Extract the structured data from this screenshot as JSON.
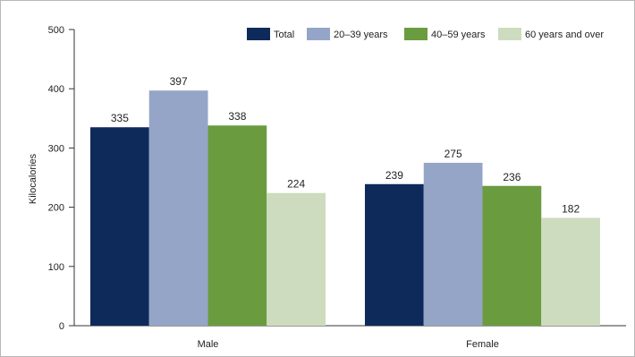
{
  "chart_data": {
    "type": "bar",
    "title": "",
    "xlabel": "",
    "ylabel": "Kilocalories",
    "ylim": [
      0,
      500
    ],
    "yticks": [
      0,
      100,
      200,
      300,
      400,
      500
    ],
    "grid": false,
    "legend_position": "top-right",
    "categories": [
      "Male",
      "Female"
    ],
    "series": [
      {
        "name": "Total",
        "color": "#0d2a5a",
        "values": [
          335,
          239
        ]
      },
      {
        "name": "20–39 years",
        "color": "#95a5c8",
        "values": [
          397,
          275
        ]
      },
      {
        "name": "40–59 years",
        "color": "#6a9c3f",
        "values": [
          338,
          236
        ]
      },
      {
        "name": "60 years and over",
        "color": "#cddcbf",
        "values": [
          224,
          182
        ]
      }
    ]
  }
}
